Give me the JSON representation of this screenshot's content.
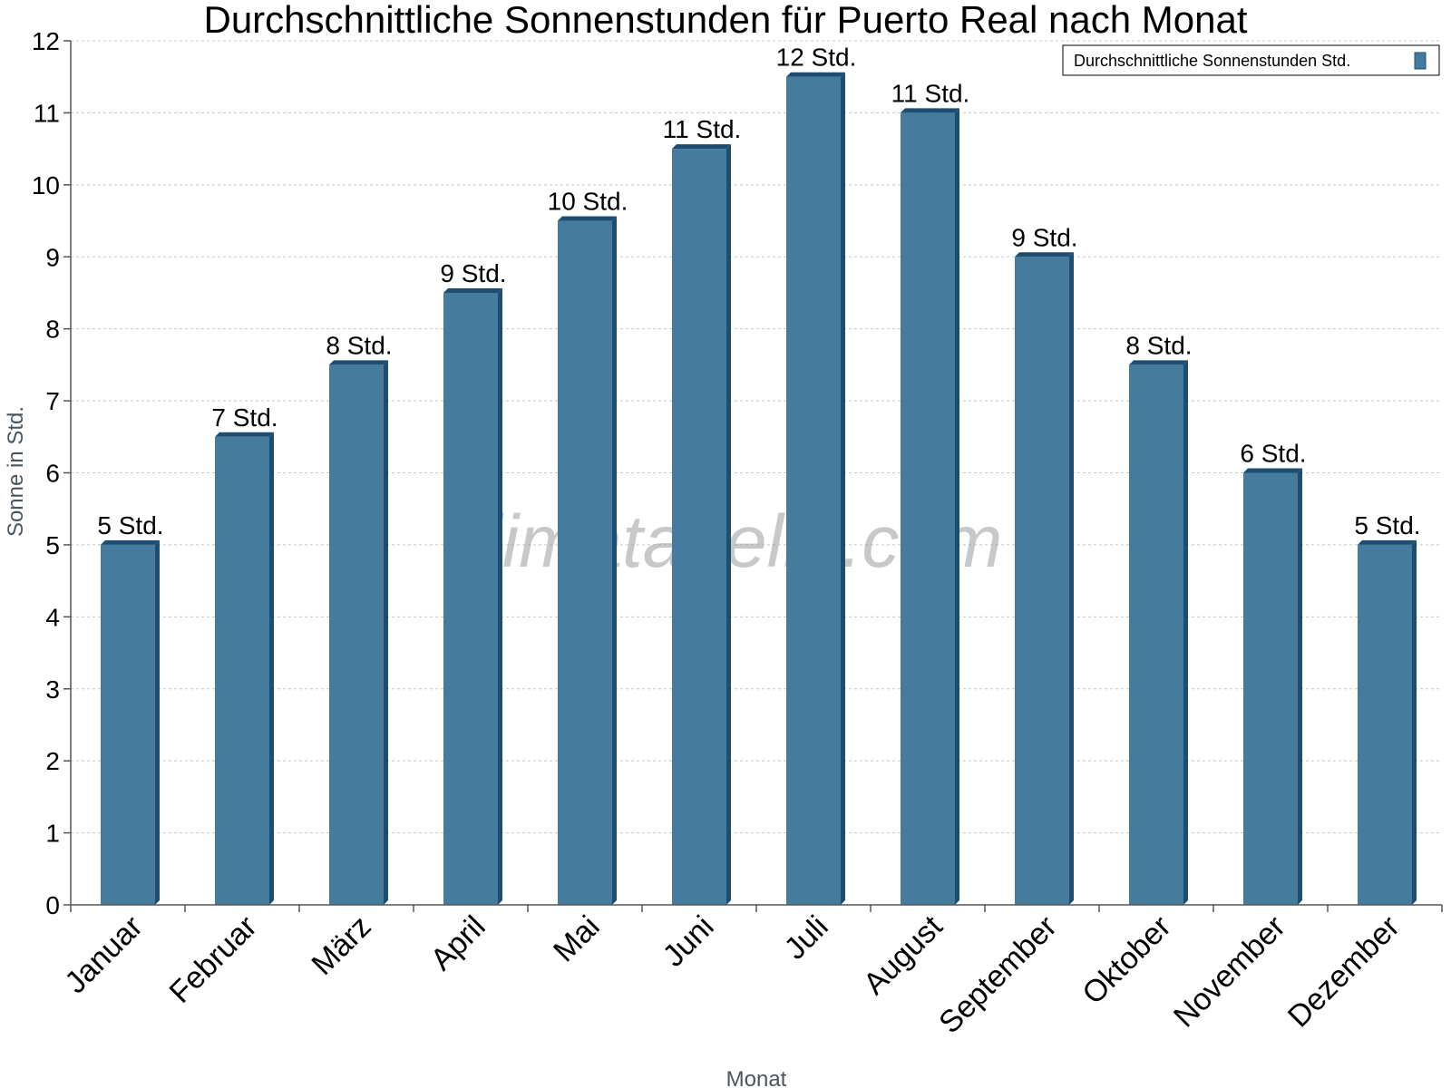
{
  "chart_data": {
    "type": "bar",
    "title": "Durchschnittliche Sonnenstunden für Puerto Real nach Monat",
    "xlabel": "Monat",
    "ylabel": "Sonne in Std.",
    "ylim": [
      0,
      12
    ],
    "yticks": [
      "0",
      "1",
      "2",
      "3",
      "4",
      "5",
      "6",
      "7",
      "8",
      "9",
      "10",
      "11",
      "12"
    ],
    "categories": [
      "Januar",
      "Februar",
      "März",
      "April",
      "Mai",
      "Juni",
      "Juli",
      "August",
      "September",
      "Oktober",
      "November",
      "Dezember"
    ],
    "series": [
      {
        "name": "Durchschnittliche Sonnenstunden Std.",
        "values": [
          5,
          6.5,
          7.5,
          8.5,
          9.5,
          10.5,
          11.5,
          11,
          9,
          7.5,
          6,
          5
        ],
        "labels": [
          "5 Std.",
          "7 Std.",
          "8 Std.",
          "9 Std.",
          "10 Std.",
          "11 Std.",
          "12 Std.",
          "11 Std.",
          "9 Std.",
          "8 Std.",
          "6 Std.",
          "5 Std."
        ]
      }
    ],
    "grid": true,
    "legend_position": "top-right",
    "colors": {
      "bar": "#457b9d",
      "bar_top": "#1d4e72",
      "bar_side": "#1d4e72",
      "grid": "#c8c8c8",
      "axis": "#555555"
    }
  },
  "watermark": "klimatabelle.com"
}
